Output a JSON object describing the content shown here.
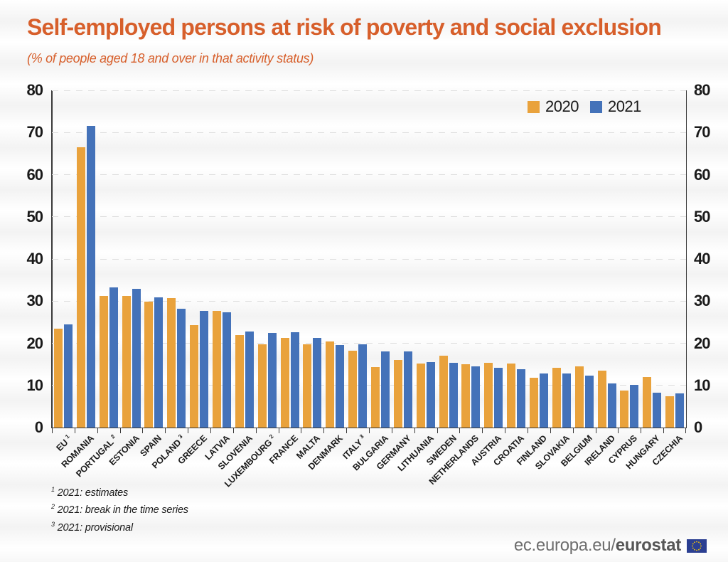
{
  "title": "Self-employed persons at risk of poverty and social exclusion",
  "subtitle": "(% of people aged 18 and over in that activity status)",
  "legend": {
    "position": "top-right"
  },
  "footnotes": [
    {
      "sup": "1",
      "text": "2021: estimates"
    },
    {
      "sup": "2",
      "text": "2021: break in the time series"
    },
    {
      "sup": "3",
      "text": "2021: provisional"
    }
  ],
  "footer": {
    "url_prefix": "ec.europa.eu/",
    "url_bold": "eurostat",
    "flag_blue": "#2b3f92",
    "flag_yellow": "#ffcc00"
  },
  "colors": {
    "title_orange": "#d75f2b",
    "series_2020": "#e9a23c",
    "series_2021": "#4472b9",
    "axis": "#3a3a3a",
    "gridline": "#dedede"
  },
  "chart_data": {
    "type": "bar",
    "title": "Self-employed persons at risk of poverty and social exclusion",
    "subtitle": "(% of people aged 18 and over in that activity status)",
    "ylabel": "",
    "xlabel": "",
    "ylim": [
      0,
      80
    ],
    "yticks": [
      0,
      10,
      20,
      30,
      40,
      50,
      60,
      70,
      80
    ],
    "grid": "horizontal-dashed",
    "legend_position": "top-right",
    "categories": [
      {
        "name": "EU",
        "sup": "1"
      },
      {
        "name": "ROMANIA",
        "sup": ""
      },
      {
        "name": "PORTUGAL",
        "sup": "2"
      },
      {
        "name": "ESTONIA",
        "sup": ""
      },
      {
        "name": "SPAIN",
        "sup": ""
      },
      {
        "name": "POLAND",
        "sup": "3"
      },
      {
        "name": "GREECE",
        "sup": ""
      },
      {
        "name": "LATVIA",
        "sup": ""
      },
      {
        "name": "SLOVENIA",
        "sup": ""
      },
      {
        "name": "LUXEMBOURG",
        "sup": "2"
      },
      {
        "name": "FRANCE",
        "sup": ""
      },
      {
        "name": "MALTA",
        "sup": ""
      },
      {
        "name": "DENMARK",
        "sup": ""
      },
      {
        "name": "ITALY",
        "sup": "3"
      },
      {
        "name": "BULGARIA",
        "sup": ""
      },
      {
        "name": "GERMANY",
        "sup": ""
      },
      {
        "name": "LITHUANIA",
        "sup": ""
      },
      {
        "name": "SWEDEN",
        "sup": ""
      },
      {
        "name": "NETHERLANDS",
        "sup": ""
      },
      {
        "name": "AUSTRIA",
        "sup": ""
      },
      {
        "name": "CROATIA",
        "sup": ""
      },
      {
        "name": "FINLAND",
        "sup": ""
      },
      {
        "name": "SLOVAKIA",
        "sup": ""
      },
      {
        "name": "BELGIUM",
        "sup": ""
      },
      {
        "name": "IRELAND",
        "sup": ""
      },
      {
        "name": "CYPRUS",
        "sup": ""
      },
      {
        "name": "HUNGARY",
        "sup": ""
      },
      {
        "name": "CZECHIA",
        "sup": ""
      }
    ],
    "series": [
      {
        "name": "2020",
        "color": "#e9a23c",
        "values": [
          23.4,
          66.5,
          31.2,
          31.2,
          29.8,
          30.7,
          24.3,
          27.7,
          22.0,
          19.7,
          21.3,
          19.7,
          20.4,
          18.3,
          14.3,
          16.1,
          15.2,
          17.1,
          15.1,
          15.4,
          15.2,
          11.8,
          14.1,
          14.6,
          13.5,
          8.7,
          12.0,
          7.4
        ]
      },
      {
        "name": "2021",
        "color": "#4472b9",
        "values": [
          24.4,
          71.5,
          33.2,
          32.9,
          30.9,
          28.2,
          27.6,
          27.3,
          22.8,
          22.5,
          22.7,
          21.2,
          19.5,
          19.7,
          18.0,
          18.0,
          15.6,
          15.4,
          14.6,
          14.2,
          13.8,
          12.8,
          12.8,
          12.4,
          10.4,
          10.1,
          8.3,
          8.1
        ]
      }
    ]
  }
}
